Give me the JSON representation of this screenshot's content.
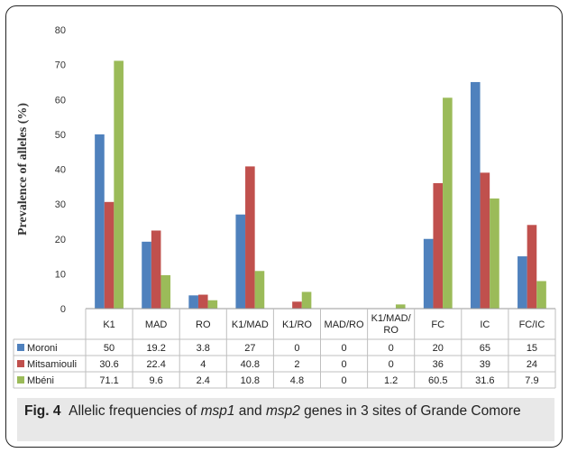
{
  "chart_data": {
    "type": "bar",
    "ylabel": "Prevalence of alleles (%)",
    "ylim": [
      0,
      80
    ],
    "yticks": [
      0,
      10,
      20,
      30,
      40,
      50,
      60,
      70,
      80
    ],
    "grid": false,
    "legend": "table below chart",
    "categories": [
      "K1",
      "MAD",
      "RO",
      "K1/MAD",
      "K1/RO",
      "MAD/RO",
      "K1/MAD/RO",
      "FC",
      "IC",
      "FC/IC"
    ],
    "series": [
      {
        "name": "Moroni",
        "color": "#4f81bd",
        "values": [
          50,
          19.2,
          3.8,
          27,
          0,
          0,
          0,
          20,
          65,
          15
        ],
        "labels": [
          "50",
          "19.2",
          "3.8",
          "27",
          "0",
          "0",
          "0",
          "20",
          "65",
          "15"
        ]
      },
      {
        "name": "Mitsamiouli",
        "color": "#c0504d",
        "values": [
          30.6,
          22.4,
          4,
          40.8,
          2,
          0,
          0,
          36,
          39,
          24
        ],
        "labels": [
          "30.6",
          "22.4",
          "4",
          "40.8",
          "2",
          "0",
          "0",
          "36",
          "39",
          "24"
        ]
      },
      {
        "name": "Mbéni",
        "color": "#9bbb59",
        "values": [
          71.1,
          9.6,
          2.4,
          10.8,
          4.8,
          0,
          1.2,
          60.5,
          31.6,
          7.9
        ],
        "labels": [
          "71.1",
          "9.6",
          "2.4",
          "10.8",
          "4.8",
          "0",
          "1.2",
          "60.5",
          "31.6",
          "7.9"
        ]
      }
    ]
  },
  "caption": {
    "label": "Fig. 4",
    "text_1": "Allelic frequencies of ",
    "gene_1": "msp1",
    "text_2": " and ",
    "gene_2": "msp2",
    "text_3": " genes in 3 sites of Grande Comore"
  }
}
